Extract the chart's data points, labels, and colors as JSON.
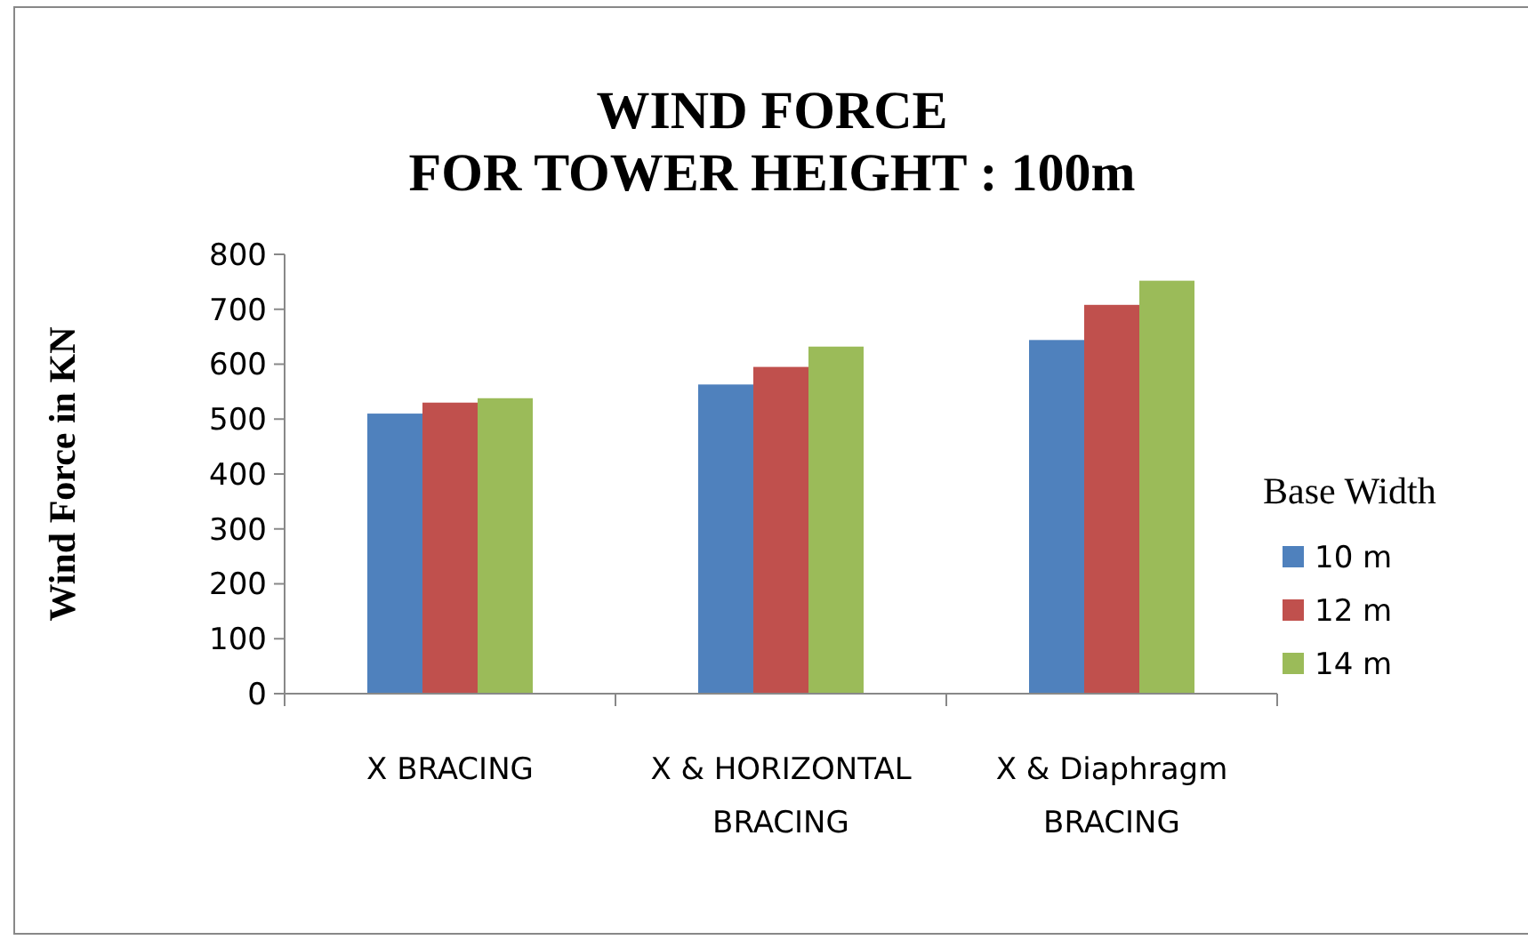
{
  "chart_data": {
    "type": "bar",
    "title": "WIND FORCE\nFOR TOWER HEIGHT : 100m",
    "ylabel": "Wind Force in KN",
    "legend_title": "Base Width",
    "categories": [
      "X BRACING",
      "X & HORIZONTAL BRACING",
      "X & Diaphragm BRACING"
    ],
    "series": [
      {
        "name": "10 m",
        "color": "#4f81bd",
        "values": [
          510,
          563,
          644
        ]
      },
      {
        "name": "12 m",
        "color": "#c0504d",
        "values": [
          530,
          595,
          708
        ]
      },
      {
        "name": "14 m",
        "color": "#9bbb59",
        "values": [
          538,
          632,
          752
        ]
      }
    ],
    "ylim": [
      0,
      800
    ],
    "yticks": [
      0,
      100,
      200,
      300,
      400,
      500,
      600,
      700,
      800
    ],
    "grid": false,
    "legend": "right"
  }
}
